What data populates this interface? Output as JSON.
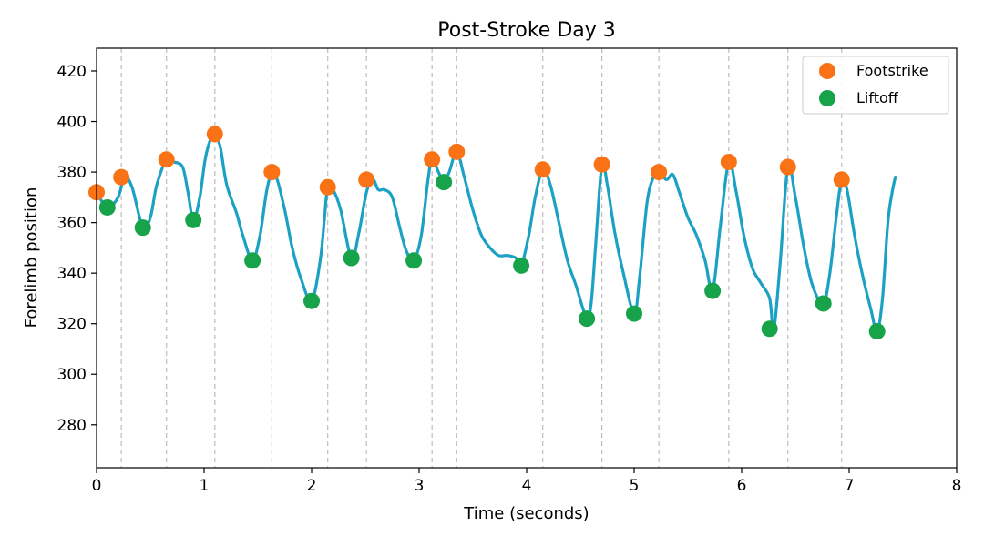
{
  "chart_data": {
    "type": "line",
    "title": "Post-Stroke Day 3",
    "xlabel": "Time (seconds)",
    "ylabel": "Forelimb position",
    "xlim": [
      0,
      8
    ],
    "ylim": [
      263,
      429
    ],
    "xticks": [
      0,
      1,
      2,
      3,
      4,
      5,
      6,
      7,
      8
    ],
    "yticks": [
      280,
      300,
      320,
      340,
      360,
      380,
      400,
      420
    ],
    "grid": false,
    "legend_position": "top-right",
    "colors": {
      "line": "#1ba1c4",
      "footstrike": "#f97316",
      "liftoff": "#16a34a",
      "vline": "#bdbdbd"
    },
    "trace": {
      "x": [
        0,
        0.1,
        0.2,
        0.26,
        0.33,
        0.43,
        0.5,
        0.56,
        0.65,
        0.72,
        0.8,
        0.85,
        0.9,
        0.96,
        1.01,
        1.06,
        1.1,
        1.15,
        1.21,
        1.3,
        1.36,
        1.45,
        1.52,
        1.58,
        1.63,
        1.68,
        1.75,
        1.82,
        1.9,
        2.0,
        2.08,
        2.12,
        2.15,
        2.2,
        2.27,
        2.37,
        2.44,
        2.51,
        2.57,
        2.62,
        2.68,
        2.75,
        2.82,
        2.88,
        2.95,
        3.02,
        3.08,
        3.12,
        3.18,
        3.23,
        3.28,
        3.35,
        3.42,
        3.5,
        3.58,
        3.66,
        3.74,
        3.82,
        3.9,
        3.95,
        4.02,
        4.08,
        4.15,
        4.22,
        4.3,
        4.38,
        4.46,
        4.56,
        4.6,
        4.64,
        4.7,
        4.75,
        4.82,
        4.9,
        5.0,
        5.05,
        5.12,
        5.18,
        5.23,
        5.3,
        5.36,
        5.42,
        5.5,
        5.58,
        5.66,
        5.73,
        5.8,
        5.88,
        5.95,
        6.02,
        6.1,
        6.18,
        6.26,
        6.3,
        6.36,
        6.43,
        6.5,
        6.58,
        6.66,
        6.76,
        6.82,
        6.88,
        6.93,
        6.98,
        7.05,
        7.12,
        7.2,
        7.26,
        7.31,
        7.36,
        7.4,
        7.43
      ],
      "y": [
        372,
        366,
        370,
        378,
        374,
        358,
        362,
        375,
        385,
        384,
        382,
        372,
        361,
        370,
        385,
        393,
        395,
        390,
        375,
        364,
        355,
        345,
        355,
        372,
        380,
        377,
        365,
        350,
        338,
        329,
        345,
        362,
        374,
        373,
        365,
        346,
        356,
        372,
        377,
        373,
        373,
        370,
        358,
        349,
        345,
        355,
        376,
        385,
        380,
        376,
        380,
        388,
        378,
        365,
        355,
        350,
        347,
        347,
        346,
        343,
        355,
        370,
        381,
        375,
        360,
        345,
        335,
        322,
        328,
        350,
        383,
        375,
        356,
        340,
        324,
        338,
        368,
        378,
        380,
        377,
        379,
        372,
        362,
        355,
        345,
        333,
        358,
        384,
        372,
        355,
        342,
        336,
        330,
        318,
        345,
        382,
        370,
        350,
        335,
        328,
        340,
        362,
        377,
        373,
        355,
        340,
        326,
        317,
        330,
        360,
        372,
        378
      ]
    },
    "series": [
      {
        "name": "Footstrike",
        "x": [
          0,
          0.23,
          0.65,
          1.1,
          1.63,
          2.15,
          2.51,
          3.12,
          3.35,
          4.15,
          4.7,
          5.23,
          5.88,
          6.43,
          6.93
        ],
        "y": [
          372,
          378,
          385,
          395,
          380,
          374,
          377,
          385,
          388,
          381,
          383,
          380,
          384,
          382,
          377
        ]
      },
      {
        "name": "Liftoff",
        "x": [
          0.1,
          0.43,
          0.9,
          1.45,
          2.0,
          2.37,
          2.95,
          3.23,
          3.95,
          4.56,
          5.0,
          5.73,
          6.26,
          6.76,
          7.26
        ],
        "y": [
          366,
          358,
          361,
          345,
          329,
          346,
          345,
          376,
          343,
          322,
          324,
          333,
          318,
          328,
          317
        ]
      }
    ],
    "vlines": [
      0.23,
      0.65,
      1.1,
      1.63,
      2.15,
      2.51,
      3.12,
      3.35,
      4.15,
      4.7,
      5.23,
      5.88,
      6.43,
      6.93
    ]
  }
}
